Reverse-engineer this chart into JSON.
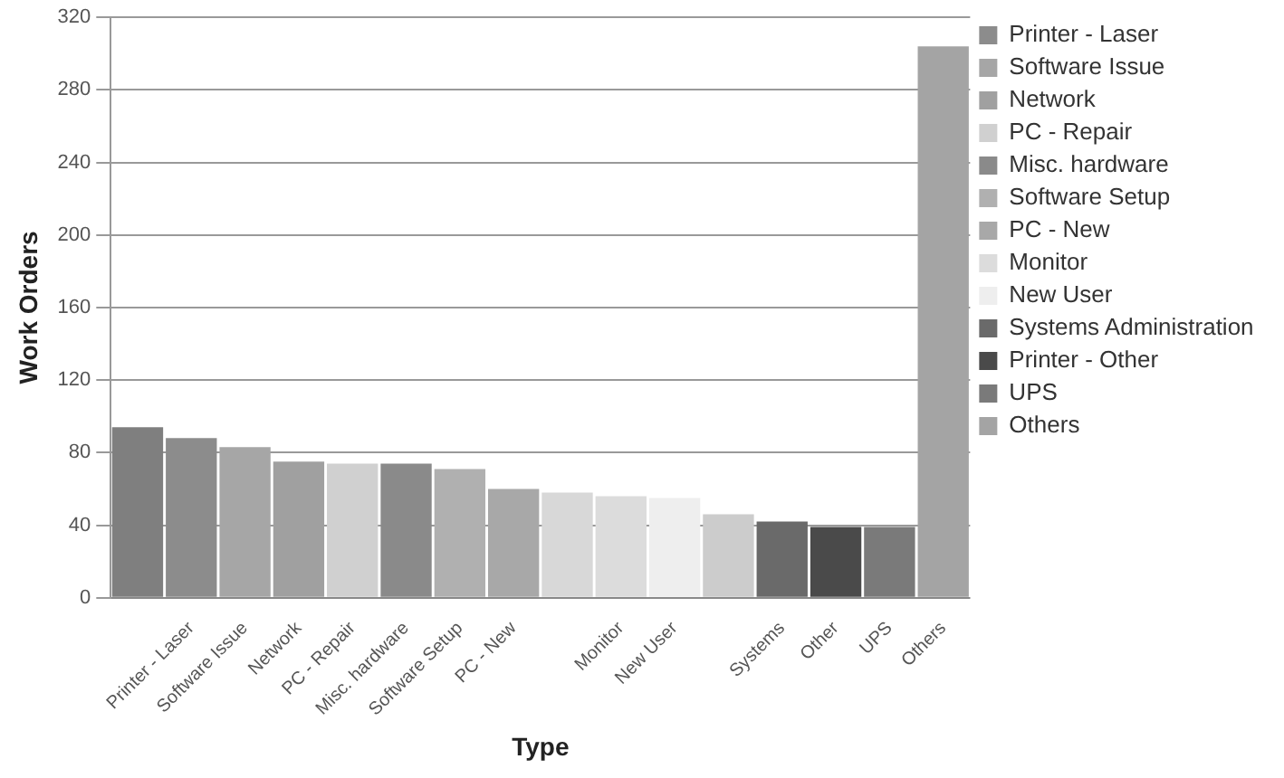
{
  "chart_data": {
    "type": "bar",
    "xlabel": "Type",
    "ylabel": "Work Orders",
    "stacked": true,
    "grid": "y",
    "legend": "right",
    "categories": [
      null,
      "Printer - Laser",
      "Software Issue",
      "Network",
      "PC - Repair",
      "Misc. hardware",
      "Software Setup",
      "PC - New",
      null,
      "Monitor",
      "New User",
      null,
      "Systems",
      "Other",
      "UPS",
      "Others"
    ],
    "ylim": [
      0,
      320
    ],
    "yticks": [
      0,
      40,
      80,
      120,
      160,
      200,
      240,
      280,
      320
    ],
    "series": [
      {
        "color": "#7f7f7f",
        "values": [
          94,
          null,
          null,
          null,
          null,
          null,
          null,
          null,
          null,
          null,
          null,
          null,
          null,
          null,
          null,
          null
        ]
      },
      {
        "name": "Printer - Laser",
        "color": "#8c8c8c",
        "values": [
          null,
          88,
          null,
          null,
          null,
          null,
          null,
          null,
          null,
          null,
          null,
          null,
          null,
          null,
          null,
          null
        ]
      },
      {
        "name": "Software Issue",
        "color": "#a6a6a6",
        "values": [
          null,
          null,
          83,
          null,
          null,
          null,
          null,
          null,
          null,
          null,
          null,
          null,
          null,
          null,
          null,
          null
        ]
      },
      {
        "name": "Network",
        "color": "#a0a0a0",
        "values": [
          null,
          null,
          null,
          75,
          null,
          null,
          null,
          null,
          null,
          null,
          null,
          null,
          null,
          null,
          null,
          null
        ]
      },
      {
        "name": "PC - Repair",
        "color": "#d0d0d0",
        "values": [
          null,
          null,
          null,
          null,
          74,
          null,
          null,
          null,
          null,
          null,
          null,
          null,
          null,
          null,
          null,
          null
        ]
      },
      {
        "name": "Misc. hardware",
        "color": "#8a8a8a",
        "values": [
          null,
          null,
          null,
          null,
          null,
          74,
          null,
          null,
          null,
          null,
          null,
          null,
          null,
          null,
          null,
          null
        ]
      },
      {
        "name": "Software Setup",
        "color": "#b0b0b0",
        "values": [
          null,
          null,
          null,
          null,
          null,
          null,
          71,
          null,
          null,
          null,
          null,
          null,
          null,
          null,
          null,
          null
        ]
      },
      {
        "name": "PC - New",
        "color": "#a8a8a8",
        "values": [
          null,
          null,
          null,
          null,
          null,
          null,
          null,
          60,
          null,
          null,
          null,
          null,
          null,
          null,
          null,
          null
        ]
      },
      {
        "color": "#d8d8d8",
        "values": [
          null,
          null,
          null,
          null,
          null,
          null,
          null,
          null,
          58,
          null,
          null,
          null,
          null,
          null,
          null,
          null
        ]
      },
      {
        "name": "Monitor",
        "color": "#dcdcdc",
        "values": [
          null,
          null,
          null,
          null,
          null,
          null,
          null,
          null,
          null,
          56,
          null,
          null,
          null,
          null,
          null,
          null
        ]
      },
      {
        "name": "New User",
        "color": "#eeeeee",
        "values": [
          null,
          null,
          null,
          null,
          null,
          null,
          null,
          null,
          null,
          null,
          55,
          null,
          null,
          null,
          null,
          null
        ]
      },
      {
        "color": "#cccccc",
        "values": [
          null,
          null,
          null,
          null,
          null,
          null,
          null,
          null,
          null,
          null,
          null,
          46,
          null,
          null,
          null,
          null
        ]
      },
      {
        "name": "Systems Administration",
        "color": "#6a6a6a",
        "values": [
          null,
          null,
          null,
          null,
          null,
          null,
          null,
          null,
          null,
          null,
          null,
          null,
          42,
          null,
          null,
          null
        ]
      },
      {
        "name": "Printer - Other",
        "color": "#4a4a4a",
        "values": [
          null,
          null,
          null,
          null,
          null,
          null,
          null,
          null,
          null,
          null,
          null,
          null,
          null,
          39,
          null,
          null
        ]
      },
      {
        "name": "UPS",
        "color": "#7a7a7a",
        "values": [
          null,
          null,
          null,
          null,
          null,
          null,
          null,
          null,
          null,
          null,
          null,
          null,
          null,
          null,
          39,
          null
        ]
      },
      {
        "name": "Others",
        "color": "#a4a4a4",
        "values": [
          null,
          null,
          null,
          null,
          null,
          null,
          null,
          null,
          null,
          null,
          null,
          null,
          null,
          null,
          null,
          304
        ]
      }
    ]
  }
}
